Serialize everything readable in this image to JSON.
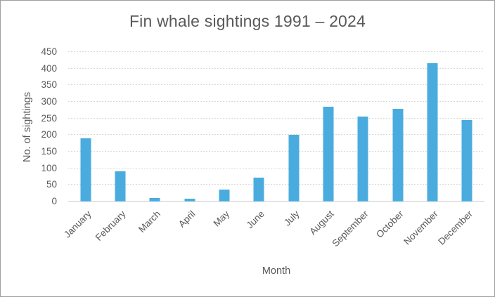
{
  "chart_data": {
    "type": "bar",
    "title": "Fin whale sightings 1991 – 2024",
    "xlabel": "Month",
    "ylabel": "No. of sightings",
    "categories": [
      "January",
      "February",
      "March",
      "April",
      "May",
      "June",
      "July",
      "August",
      "September",
      "October",
      "November",
      "December"
    ],
    "values": [
      190,
      90,
      10,
      8,
      35,
      72,
      200,
      285,
      255,
      278,
      417,
      245
    ],
    "ylim": [
      0,
      450
    ],
    "yticks": [
      0,
      50,
      100,
      150,
      200,
      250,
      300,
      350,
      400,
      450
    ],
    "grid": true,
    "legend": "none",
    "colors": {
      "bar": "#4AACDE",
      "gridline": "#D9D9D9",
      "axis_line": "#C9C9C9",
      "text": "#595959",
      "background": "#FFFFFF",
      "frame_border": "#9E9E9E"
    }
  }
}
